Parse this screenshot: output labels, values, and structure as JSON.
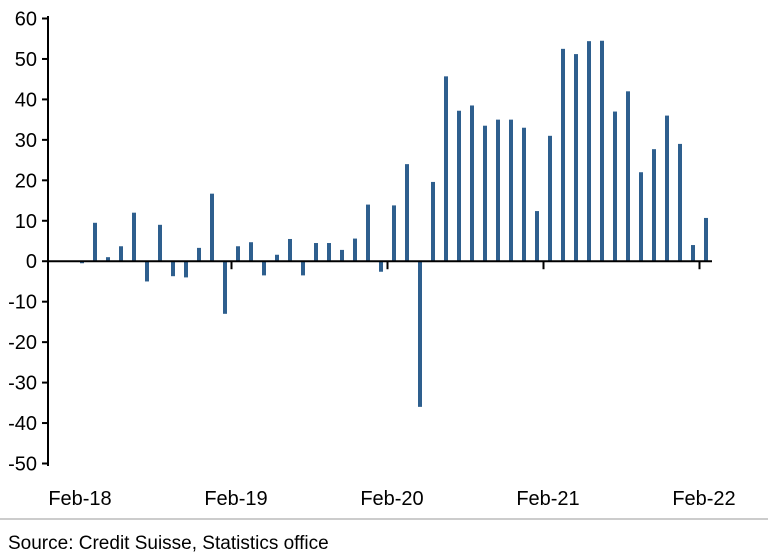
{
  "chart_data": {
    "type": "bar",
    "title": "",
    "xlabel": "",
    "ylabel": "",
    "ylim": [
      -50,
      60
    ],
    "yticks": [
      60,
      50,
      40,
      30,
      20,
      10,
      0,
      -10,
      -20,
      -30,
      -40,
      -50
    ],
    "xtick_labels": [
      "Feb-18",
      "Feb-19",
      "Feb-20",
      "Feb-21",
      "Feb-22"
    ],
    "xtick_indices": [
      0,
      12,
      24,
      36,
      48
    ],
    "categories": [
      "Feb-18",
      "Mar-18",
      "Apr-18",
      "May-18",
      "Jun-18",
      "Jul-18",
      "Aug-18",
      "Sep-18",
      "Oct-18",
      "Nov-18",
      "Dec-18",
      "Jan-19",
      "Feb-19",
      "Mar-19",
      "Apr-19",
      "May-19",
      "Jun-19",
      "Jul-19",
      "Aug-19",
      "Sep-19",
      "Oct-19",
      "Nov-19",
      "Dec-19",
      "Jan-20",
      "Feb-20",
      "Mar-20",
      "Apr-20",
      "May-20",
      "Jun-20",
      "Jul-20",
      "Aug-20",
      "Sep-20",
      "Oct-20",
      "Nov-20",
      "Dec-20",
      "Jan-21",
      "Feb-21",
      "Mar-21",
      "Apr-21",
      "May-21",
      "Jun-21",
      "Jul-21",
      "Aug-21",
      "Sep-21",
      "Oct-21",
      "Nov-21",
      "Dec-21",
      "Jan-22",
      "Feb-22"
    ],
    "values": [
      -0.5,
      9.5,
      1,
      3.7,
      12,
      -5,
      9,
      -3.7,
      -4,
      3.3,
      16.7,
      -13,
      3.7,
      4.7,
      -3.5,
      1.6,
      5.5,
      -3.5,
      4.5,
      4.5,
      2.8,
      5.6,
      14,
      -2.6,
      13.8,
      24,
      -36,
      19.6,
      45.7,
      37.2,
      38.5,
      33.5,
      35,
      35,
      33,
      12.4,
      31,
      52.5,
      51.2,
      54.4,
      54.5,
      37,
      42,
      22,
      27.7,
      36,
      29,
      4,
      10.7
    ],
    "bar_color": "#2e5f8e",
    "grid": false,
    "source": "Source: Credit Suisse, Statistics office"
  }
}
